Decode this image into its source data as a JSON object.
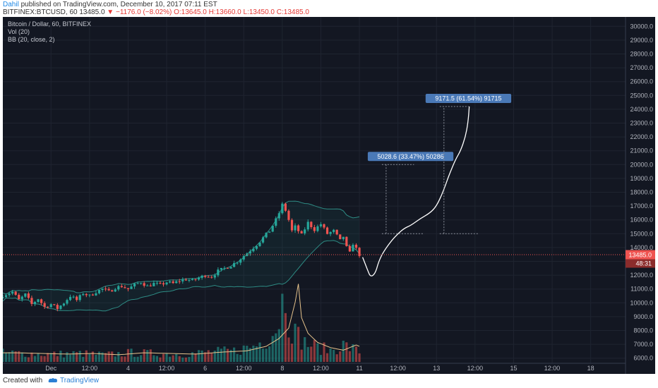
{
  "header": {
    "author": "Dahil",
    "published": "published on TradingView.com, December 10, 2017 07:11 EST",
    "symbol_line": "BITFINEX:BTCUSD, 60  13485.0",
    "change": "−1176.0 (−8.02%)",
    "ohlc": "O:13645.0  H:13660.0  L:13450.0  C:13485.0"
  },
  "footer": {
    "created_with": "Created with",
    "brand": "TradingView"
  },
  "colors": {
    "background": "#131722",
    "up": "#26a69a",
    "down": "#ef5350",
    "price_line": "#ef5350",
    "annotation": "#4a79b7",
    "forecast_line": "#ffffff"
  },
  "chart_data": {
    "type": "candlestick",
    "symbol": "BITFINEX:BTCUSD",
    "interval": "60",
    "indicators": [
      "Vol (20)",
      "BB (20, close, 2)"
    ],
    "legend": [
      "Bitcoin / Dollar, 60, BITFINEX",
      "Vol (20)",
      "BB (20, close, 2)"
    ],
    "ylim": [
      5500,
      30500
    ],
    "y_ticks": [
      "6000.0",
      "7000.0",
      "8000.0",
      "9000.0",
      "10000.0",
      "11000.0",
      "12000.0",
      "13000.0",
      "14000.0",
      "15000.0",
      "16000.0",
      "17000.0",
      "18000.0",
      "19000.0",
      "20000.0",
      "21000.0",
      "22000.0",
      "23000.0",
      "24000.0",
      "25000.0",
      "26000.0",
      "27000.0",
      "28000.0",
      "29000.0",
      "30000.0"
    ],
    "x_ticks": [
      "Dec",
      "12:00",
      "4",
      "12:00",
      "6",
      "12:00",
      "8",
      "12:00",
      "11",
      "12:00",
      "13",
      "12:00",
      "15",
      "12:00",
      "18"
    ],
    "x_tick_hours": [
      15,
      27,
      39,
      51,
      63,
      75,
      87,
      99,
      111,
      123,
      135,
      147,
      159,
      171,
      183
    ],
    "candle_start_hour": 0,
    "last_price": "13485.0",
    "countdown": "48:31",
    "price_path": [
      [
        0,
        10550
      ],
      [
        3,
        10800
      ],
      [
        5,
        10200
      ],
      [
        7,
        10600
      ],
      [
        9,
        9900
      ],
      [
        11,
        10300
      ],
      [
        13,
        9700
      ],
      [
        15,
        9900
      ],
      [
        17,
        9600
      ],
      [
        19,
        10000
      ],
      [
        21,
        10500
      ],
      [
        23,
        10200
      ],
      [
        25,
        10700
      ],
      [
        27,
        10500
      ],
      [
        29,
        10800
      ],
      [
        31,
        11000
      ],
      [
        33,
        10800
      ],
      [
        35,
        11100
      ],
      [
        37,
        11200
      ],
      [
        39,
        11000
      ],
      [
        41,
        11300
      ],
      [
        43,
        11500
      ],
      [
        45,
        11200
      ],
      [
        47,
        11400
      ],
      [
        49,
        11300
      ],
      [
        51,
        11500
      ],
      [
        53,
        11400
      ],
      [
        55,
        11600
      ],
      [
        57,
        11700
      ],
      [
        59,
        11600
      ],
      [
        61,
        11800
      ],
      [
        63,
        12000
      ],
      [
        65,
        11900
      ],
      [
        67,
        12300
      ],
      [
        69,
        12500
      ],
      [
        71,
        12700
      ],
      [
        73,
        13000
      ],
      [
        75,
        13400
      ],
      [
        77,
        13800
      ],
      [
        79,
        14200
      ],
      [
        81,
        14700
      ],
      [
        83,
        15200
      ],
      [
        85,
        16000
      ],
      [
        86,
        16500
      ],
      [
        87,
        17100
      ],
      [
        88,
        16700
      ],
      [
        89,
        16000
      ],
      [
        90,
        15200
      ],
      [
        91,
        15500
      ],
      [
        93,
        14900
      ],
      [
        95,
        15800
      ],
      [
        97,
        15300
      ],
      [
        99,
        15700
      ],
      [
        101,
        15000
      ],
      [
        103,
        15200
      ],
      [
        105,
        14500
      ],
      [
        106,
        14800
      ],
      [
        107,
        14000
      ],
      [
        108,
        13600
      ],
      [
        109,
        14300
      ],
      [
        110,
        13900
      ],
      [
        111,
        13485
      ]
    ],
    "volume_path": [
      [
        0,
        700
      ],
      [
        8,
        650
      ],
      [
        16,
        600
      ],
      [
        24,
        650
      ],
      [
        32,
        550
      ],
      [
        40,
        700
      ],
      [
        48,
        650
      ],
      [
        56,
        600
      ],
      [
        64,
        750
      ],
      [
        72,
        850
      ],
      [
        78,
        1200
      ],
      [
        82,
        1800
      ],
      [
        85,
        2600
      ],
      [
        87,
        4600
      ],
      [
        88,
        6000
      ],
      [
        89,
        3400
      ],
      [
        91,
        2200
      ],
      [
        94,
        1500
      ],
      [
        98,
        1100
      ],
      [
        102,
        900
      ],
      [
        106,
        1300
      ],
      [
        108,
        1100
      ],
      [
        111,
        800
      ]
    ],
    "volume_ylim": [
      0,
      7000
    ],
    "forecast_path": [
      [
        112,
        13300
      ],
      [
        113.5,
        12400
      ],
      [
        114.5,
        11850
      ],
      [
        116,
        12150
      ],
      [
        117,
        13000
      ],
      [
        118.5,
        13700
      ],
      [
        121,
        14500
      ],
      [
        123,
        15000
      ],
      [
        125,
        15400
      ],
      [
        127,
        15600
      ],
      [
        130,
        16100
      ],
      [
        133,
        16500
      ],
      [
        135,
        17000
      ],
      [
        137,
        18000
      ],
      [
        139,
        19300
      ],
      [
        141,
        20400
      ],
      [
        142.5,
        21000
      ],
      [
        144,
        22000
      ],
      [
        144.8,
        23000
      ],
      [
        145.2,
        24200
      ]
    ],
    "annotations": [
      {
        "text": "5028.6 (33.47%) 50286",
        "from_hour": 118,
        "to_hour": 128,
        "low": 15000,
        "high": 20000
      },
      {
        "text": "9171.5 (61.54%) 91715",
        "from_hour": 136,
        "to_hour": 145,
        "low": 15000,
        "high": 24200
      }
    ]
  }
}
